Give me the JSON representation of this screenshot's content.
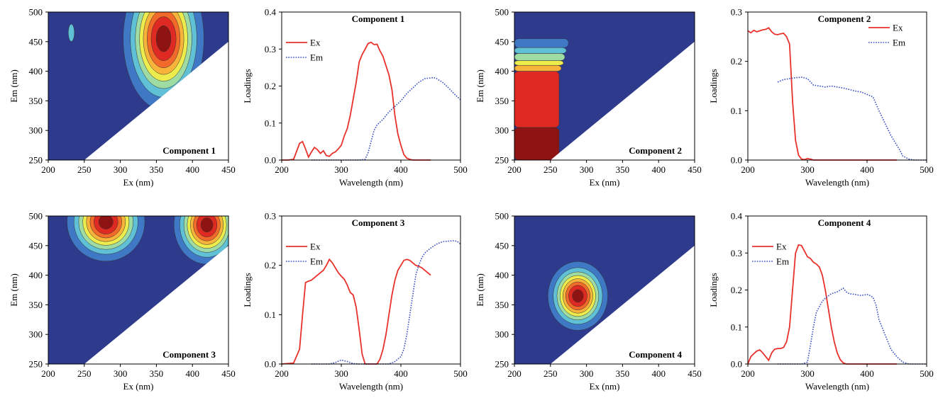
{
  "colors": {
    "ex_line": "#e8312b",
    "em_line": "#3a4fc0",
    "contour_scale": [
      "#2e3a8c",
      "#3f78c4",
      "#5fc0d6",
      "#9fdca4",
      "#ecec4c",
      "#f8b43a",
      "#f26a2a",
      "#de2a22",
      "#8e1414"
    ]
  },
  "chart_data": [
    {
      "type": "heatmap",
      "title": "Component 1",
      "xlabel": "Ex (nm)",
      "ylabel": "Em (nm)",
      "xlim": [
        200,
        450
      ],
      "ylim": [
        250,
        500
      ],
      "xticks": [
        "200",
        "250",
        "300",
        "350",
        "400",
        "450"
      ],
      "yticks": [
        "250",
        "300",
        "350",
        "400",
        "450",
        "500"
      ],
      "cutoff_line": [
        [
          250,
          250
        ],
        [
          450,
          450
        ]
      ],
      "peaks": [
        {
          "ex": 360,
          "em": 455,
          "sx": 27,
          "sy": 58,
          "amp": 1.0
        },
        {
          "ex": 232,
          "em": 465,
          "sx": 4,
          "sy": 14,
          "amp": 0.2
        }
      ]
    },
    {
      "type": "line",
      "title": "Component 1",
      "xlabel": "Wavelength (nm)",
      "ylabel": "Loadings",
      "xlim": [
        200,
        500
      ],
      "ylim": [
        0,
        0.4
      ],
      "xticks": [
        "200",
        "300",
        "400",
        "500"
      ],
      "yticks": [
        "0.0",
        "0.1",
        "0.2",
        "0.3",
        "0.4"
      ],
      "legend": "top-left",
      "series": [
        {
          "name": "Ex",
          "style": "solid",
          "x": [
            200,
            210,
            220,
            230,
            235,
            240,
            245,
            250,
            255,
            260,
            265,
            270,
            275,
            280,
            285,
            290,
            295,
            300,
            305,
            310,
            315,
            320,
            325,
            330,
            335,
            340,
            345,
            350,
            355,
            360,
            365,
            370,
            375,
            380,
            385,
            390,
            395,
            400,
            405,
            410,
            415,
            420,
            430,
            440,
            450
          ],
          "y": [
            0,
            0,
            0.002,
            0.045,
            0.05,
            0.03,
            0.008,
            0.022,
            0.034,
            0.028,
            0.018,
            0.025,
            0.012,
            0.01,
            0.018,
            0.022,
            0.03,
            0.04,
            0.065,
            0.085,
            0.12,
            0.165,
            0.21,
            0.265,
            0.285,
            0.3,
            0.315,
            0.318,
            0.312,
            0.313,
            0.295,
            0.28,
            0.255,
            0.23,
            0.19,
            0.12,
            0.07,
            0.04,
            0.015,
            0.005,
            0.002,
            0,
            0,
            0,
            0
          ]
        },
        {
          "name": "Em",
          "style": "dotted",
          "x": [
            250,
            300,
            330,
            340,
            345,
            350,
            355,
            360,
            370,
            380,
            390,
            400,
            410,
            420,
            430,
            440,
            450,
            455,
            460,
            470,
            480,
            490,
            500
          ],
          "y": [
            0,
            0,
            0,
            0.002,
            0.02,
            0.05,
            0.08,
            0.095,
            0.11,
            0.13,
            0.145,
            0.16,
            0.18,
            0.195,
            0.21,
            0.22,
            0.222,
            0.223,
            0.22,
            0.21,
            0.195,
            0.178,
            0.163
          ]
        }
      ]
    },
    {
      "type": "heatmap",
      "title": "Component 2",
      "xlabel": "Ex (nm)",
      "ylabel": "Em (nm)",
      "xlim": [
        200,
        450
      ],
      "ylim": [
        250,
        500
      ],
      "xticks": [
        "200",
        "250",
        "300",
        "350",
        "400",
        "450"
      ],
      "yticks": [
        "250",
        "300",
        "350",
        "400",
        "450",
        "500"
      ],
      "cutoff_line": [
        [
          250,
          250
        ],
        [
          450,
          450
        ]
      ],
      "bands": [
        {
          "level": 8,
          "x0": 200,
          "x1": 262,
          "y0": 250,
          "y1": 305
        },
        {
          "level": 7,
          "x0": 200,
          "x1": 262,
          "y0": 305,
          "y1": 400
        },
        {
          "level": 5,
          "x0": 200,
          "x1": 265,
          "y0": 400,
          "y1": 410
        },
        {
          "level": 4,
          "x0": 200,
          "x1": 268,
          "y0": 410,
          "y1": 418
        },
        {
          "level": 3,
          "x0": 200,
          "x1": 270,
          "y0": 418,
          "y1": 430
        },
        {
          "level": 2,
          "x0": 200,
          "x1": 272,
          "y0": 430,
          "y1": 440
        },
        {
          "level": 1,
          "x0": 200,
          "x1": 275,
          "y0": 440,
          "y1": 455
        }
      ]
    },
    {
      "type": "line",
      "title": "Component 2",
      "xlabel": "Wavelength (nm)",
      "ylabel": "Loadings",
      "xlim": [
        200,
        500
      ],
      "ylim": [
        0,
        0.3
      ],
      "xticks": [
        "200",
        "300",
        "400",
        "500"
      ],
      "yticks": [
        "0.0",
        "0.1",
        "0.2",
        "0.3"
      ],
      "legend": "top-right",
      "series": [
        {
          "name": "Ex",
          "style": "solid",
          "x": [
            200,
            205,
            210,
            215,
            220,
            225,
            230,
            235,
            240,
            245,
            250,
            255,
            260,
            265,
            270,
            275,
            280,
            285,
            290,
            295,
            300,
            305,
            310,
            350,
            450
          ],
          "y": [
            0.262,
            0.258,
            0.263,
            0.26,
            0.262,
            0.264,
            0.265,
            0.268,
            0.26,
            0.255,
            0.254,
            0.256,
            0.257,
            0.25,
            0.235,
            0.12,
            0.04,
            0.01,
            0.002,
            0.001,
            0.003,
            0.002,
            0,
            0,
            0
          ]
        },
        {
          "name": "Em",
          "style": "dotted",
          "x": [
            250,
            260,
            270,
            280,
            290,
            300,
            310,
            320,
            330,
            340,
            350,
            360,
            370,
            380,
            390,
            400,
            410,
            420,
            430,
            440,
            450,
            455,
            460,
            470,
            480,
            490,
            500
          ],
          "y": [
            0.158,
            0.163,
            0.165,
            0.167,
            0.168,
            0.165,
            0.152,
            0.15,
            0.148,
            0.15,
            0.148,
            0.146,
            0.143,
            0.14,
            0.138,
            0.133,
            0.128,
            0.1,
            0.075,
            0.05,
            0.03,
            0.02,
            0.008,
            0.002,
            0,
            0,
            0
          ]
        }
      ]
    },
    {
      "type": "heatmap",
      "title": "Component 3",
      "xlabel": "Ex (nm)",
      "ylabel": "Em (nm)",
      "xlim": [
        200,
        450
      ],
      "ylim": [
        250,
        500
      ],
      "xticks": [
        "200",
        "250",
        "300",
        "350",
        "400",
        "450"
      ],
      "yticks": [
        "250",
        "300",
        "350",
        "400",
        "450",
        "500"
      ],
      "cutoff_line": [
        [
          250,
          250
        ],
        [
          450,
          450
        ]
      ],
      "peaks": [
        {
          "ex": 280,
          "em": 490,
          "sx": 26,
          "sy": 32,
          "amp": 1.0
        },
        {
          "ex": 420,
          "em": 485,
          "sx": 22,
          "sy": 32,
          "amp": 1.0
        }
      ]
    },
    {
      "type": "line",
      "title": "Component 3",
      "xlabel": "Wavelength (nm)",
      "ylabel": "Loadings",
      "xlim": [
        200,
        500
      ],
      "ylim": [
        0,
        0.3
      ],
      "xticks": [
        "200",
        "300",
        "400",
        "500"
      ],
      "yticks": [
        "0.0",
        "0.1",
        "0.2",
        "0.3"
      ],
      "legend": "top-left",
      "series": [
        {
          "name": "Ex",
          "style": "solid",
          "x": [
            200,
            220,
            230,
            235,
            240,
            245,
            250,
            255,
            260,
            265,
            270,
            275,
            280,
            285,
            290,
            295,
            300,
            305,
            310,
            315,
            320,
            325,
            330,
            335,
            340,
            360,
            365,
            370,
            375,
            380,
            385,
            390,
            395,
            400,
            405,
            410,
            415,
            420,
            425,
            430,
            435,
            440,
            445,
            450
          ],
          "y": [
            0,
            0.002,
            0.03,
            0.1,
            0.165,
            0.168,
            0.17,
            0.175,
            0.18,
            0.185,
            0.19,
            0.2,
            0.212,
            0.205,
            0.195,
            0.185,
            0.178,
            0.172,
            0.16,
            0.145,
            0.14,
            0.115,
            0.07,
            0.02,
            0,
            0,
            0.01,
            0.03,
            0.06,
            0.1,
            0.14,
            0.17,
            0.19,
            0.2,
            0.21,
            0.212,
            0.21,
            0.205,
            0.2,
            0.198,
            0.195,
            0.19,
            0.185,
            0.18
          ]
        },
        {
          "name": "Em",
          "style": "dotted",
          "x": [
            250,
            280,
            290,
            300,
            310,
            320,
            330,
            380,
            390,
            400,
            405,
            410,
            415,
            420,
            425,
            430,
            435,
            440,
            450,
            460,
            470,
            480,
            490,
            495,
            500
          ],
          "y": [
            0,
            0,
            0.003,
            0.008,
            0.005,
            0.001,
            0,
            0,
            0.005,
            0.015,
            0.03,
            0.06,
            0.1,
            0.14,
            0.18,
            0.2,
            0.215,
            0.225,
            0.235,
            0.243,
            0.248,
            0.249,
            0.25,
            0.248,
            0.243
          ]
        }
      ]
    },
    {
      "type": "heatmap",
      "title": "Component 4",
      "xlabel": "Ex (nm)",
      "ylabel": "Em (nm)",
      "xlim": [
        200,
        450
      ],
      "ylim": [
        250,
        500
      ],
      "xticks": [
        "200",
        "250",
        "300",
        "350",
        "400",
        "450"
      ],
      "yticks": [
        "250",
        "300",
        "350",
        "400",
        "450",
        "500"
      ],
      "cutoff_line": [
        [
          250,
          250
        ],
        [
          450,
          450
        ]
      ],
      "peaks": [
        {
          "ex": 288,
          "em": 365,
          "sx": 20,
          "sy": 28,
          "amp": 1.0
        }
      ]
    },
    {
      "type": "line",
      "title": "Component 4",
      "xlabel": "Wavelength (nm)",
      "ylabel": "Loadings",
      "xlim": [
        200,
        500
      ],
      "ylim": [
        0,
        0.4
      ],
      "xticks": [
        "200",
        "300",
        "400",
        "500"
      ],
      "yticks": [
        "0.0",
        "0.1",
        "0.2",
        "0.3",
        "0.4"
      ],
      "legend": "top-left",
      "series": [
        {
          "name": "Ex",
          "style": "solid",
          "x": [
            200,
            205,
            210,
            215,
            220,
            225,
            230,
            235,
            240,
            245,
            250,
            255,
            260,
            265,
            270,
            275,
            280,
            285,
            290,
            295,
            300,
            305,
            310,
            315,
            320,
            325,
            330,
            335,
            340,
            345,
            350,
            355,
            360,
            365,
            370,
            450
          ],
          "y": [
            0,
            0.02,
            0.028,
            0.035,
            0.038,
            0.03,
            0.02,
            0.01,
            0.03,
            0.04,
            0.042,
            0.042,
            0.045,
            0.06,
            0.1,
            0.2,
            0.3,
            0.322,
            0.32,
            0.305,
            0.29,
            0.285,
            0.275,
            0.27,
            0.262,
            0.24,
            0.2,
            0.15,
            0.1,
            0.06,
            0.03,
            0.012,
            0.003,
            0,
            0,
            0
          ]
        },
        {
          "name": "Em",
          "style": "dotted",
          "x": [
            250,
            290,
            300,
            305,
            310,
            315,
            320,
            325,
            330,
            340,
            350,
            355,
            360,
            365,
            370,
            380,
            390,
            400,
            405,
            410,
            415,
            420,
            430,
            440,
            450,
            460,
            470,
            480,
            490,
            500
          ],
          "y": [
            0,
            0,
            0.005,
            0.05,
            0.1,
            0.14,
            0.155,
            0.17,
            0.178,
            0.19,
            0.195,
            0.2,
            0.205,
            0.195,
            0.19,
            0.188,
            0.185,
            0.188,
            0.185,
            0.18,
            0.16,
            0.12,
            0.08,
            0.04,
            0.02,
            0.005,
            0,
            0,
            0,
            0
          ]
        }
      ]
    }
  ]
}
